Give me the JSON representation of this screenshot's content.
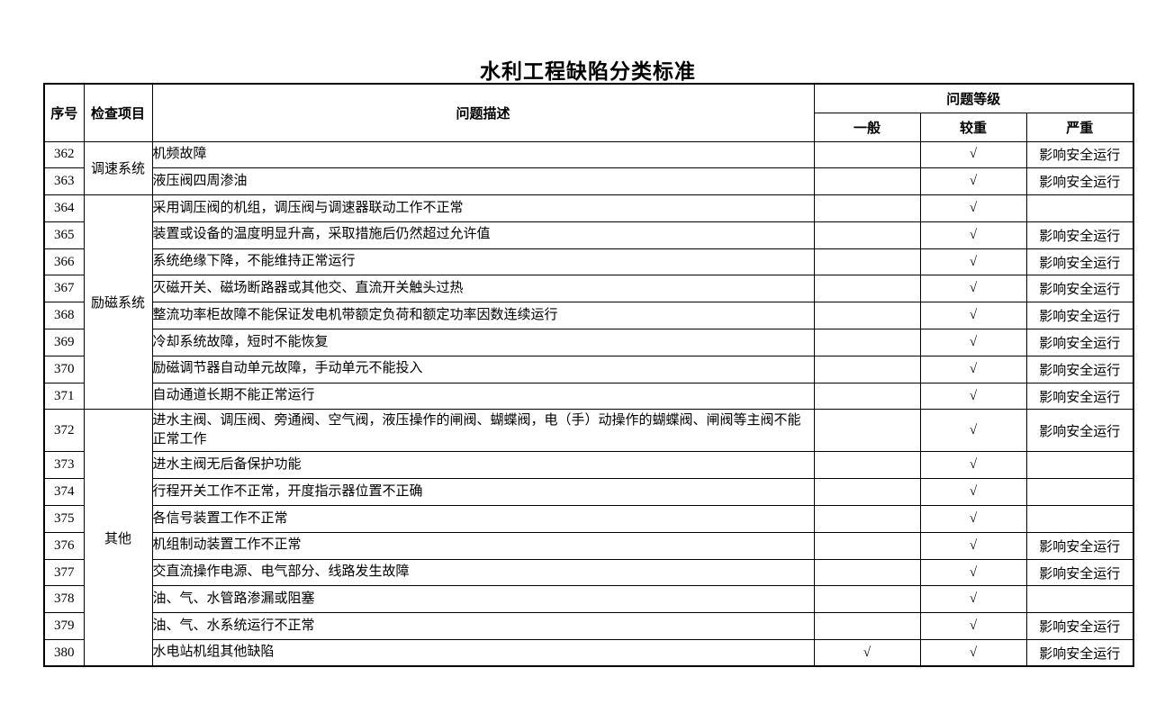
{
  "title": "水利工程缺陷分类标准",
  "table": {
    "headers": {
      "index": "序号",
      "category": "检查项目",
      "description": "问题描述",
      "level_group": "问题等级",
      "general": "一般",
      "serious": "较重",
      "severe": "严重"
    },
    "rows": [
      {
        "index": "362",
        "category": {
          "label": "调速系统",
          "rowspan": 2
        },
        "description": "机频故障",
        "general": "",
        "serious": "√",
        "severe": "影响安全运行"
      },
      {
        "index": "363",
        "description": "液压阀四周渗油",
        "general": "",
        "serious": "√",
        "severe": "影响安全运行"
      },
      {
        "index": "364",
        "category": {
          "label": "励磁系统",
          "rowspan": 8
        },
        "description": "采用调压阀的机组，调压阀与调速器联动工作不正常",
        "general": "",
        "serious": "√",
        "severe": ""
      },
      {
        "index": "365",
        "description": "装置或设备的温度明显升高，采取措施后仍然超过允许值",
        "general": "",
        "serious": "√",
        "severe": "影响安全运行"
      },
      {
        "index": "366",
        "description": "系统绝缘下降，不能维持正常运行",
        "general": "",
        "serious": "√",
        "severe": "影响安全运行"
      },
      {
        "index": "367",
        "description": "灭磁开关、磁场断路器或其他交、直流开关触头过热",
        "general": "",
        "serious": "√",
        "severe": "影响安全运行"
      },
      {
        "index": "368",
        "description": "整流功率柜故障不能保证发电机带额定负荷和额定功率因数连续运行",
        "general": "",
        "serious": "√",
        "severe": "影响安全运行"
      },
      {
        "index": "369",
        "description": "冷却系统故障，短时不能恢复",
        "general": "",
        "serious": "√",
        "severe": "影响安全运行"
      },
      {
        "index": "370",
        "description": "励磁调节器自动单元故障，手动单元不能投入",
        "general": "",
        "serious": "√",
        "severe": "影响安全运行"
      },
      {
        "index": "371",
        "description": "自动通道长期不能正常运行",
        "general": "",
        "serious": "√",
        "severe": "影响安全运行"
      },
      {
        "index": "372",
        "category": {
          "label": "其他",
          "rowspan": 9
        },
        "tall": true,
        "description": "进水主阀、调压阀、旁通阀、空气阀，液压操作的闸阀、蝴蝶阀，电（手）动操作的蝴蝶阀、闸阀等主阀不能正常工作",
        "general": "",
        "serious": "√",
        "severe": "影响安全运行"
      },
      {
        "index": "373",
        "description": "进水主阀无后备保护功能",
        "general": "",
        "serious": "√",
        "severe": ""
      },
      {
        "index": "374",
        "description": "行程开关工作不正常，开度指示器位置不正确",
        "general": "",
        "serious": "√",
        "severe": ""
      },
      {
        "index": "375",
        "description": "各信号装置工作不正常",
        "general": "",
        "serious": "√",
        "severe": ""
      },
      {
        "index": "376",
        "description": "机组制动装置工作不正常",
        "general": "",
        "serious": "√",
        "severe": "影响安全运行"
      },
      {
        "index": "377",
        "description": "交直流操作电源、电气部分、线路发生故障",
        "general": "",
        "serious": "√",
        "severe": "影响安全运行"
      },
      {
        "index": "378",
        "description": "油、气、水管路渗漏或阻塞",
        "general": "",
        "serious": "√",
        "severe": ""
      },
      {
        "index": "379",
        "description": "油、气、水系统运行不正常",
        "general": "",
        "serious": "√",
        "severe": "影响安全运行"
      },
      {
        "index": "380",
        "description": "水电站机组其他缺陷",
        "general": "√",
        "serious": "√",
        "severe": "影响安全运行"
      }
    ]
  }
}
